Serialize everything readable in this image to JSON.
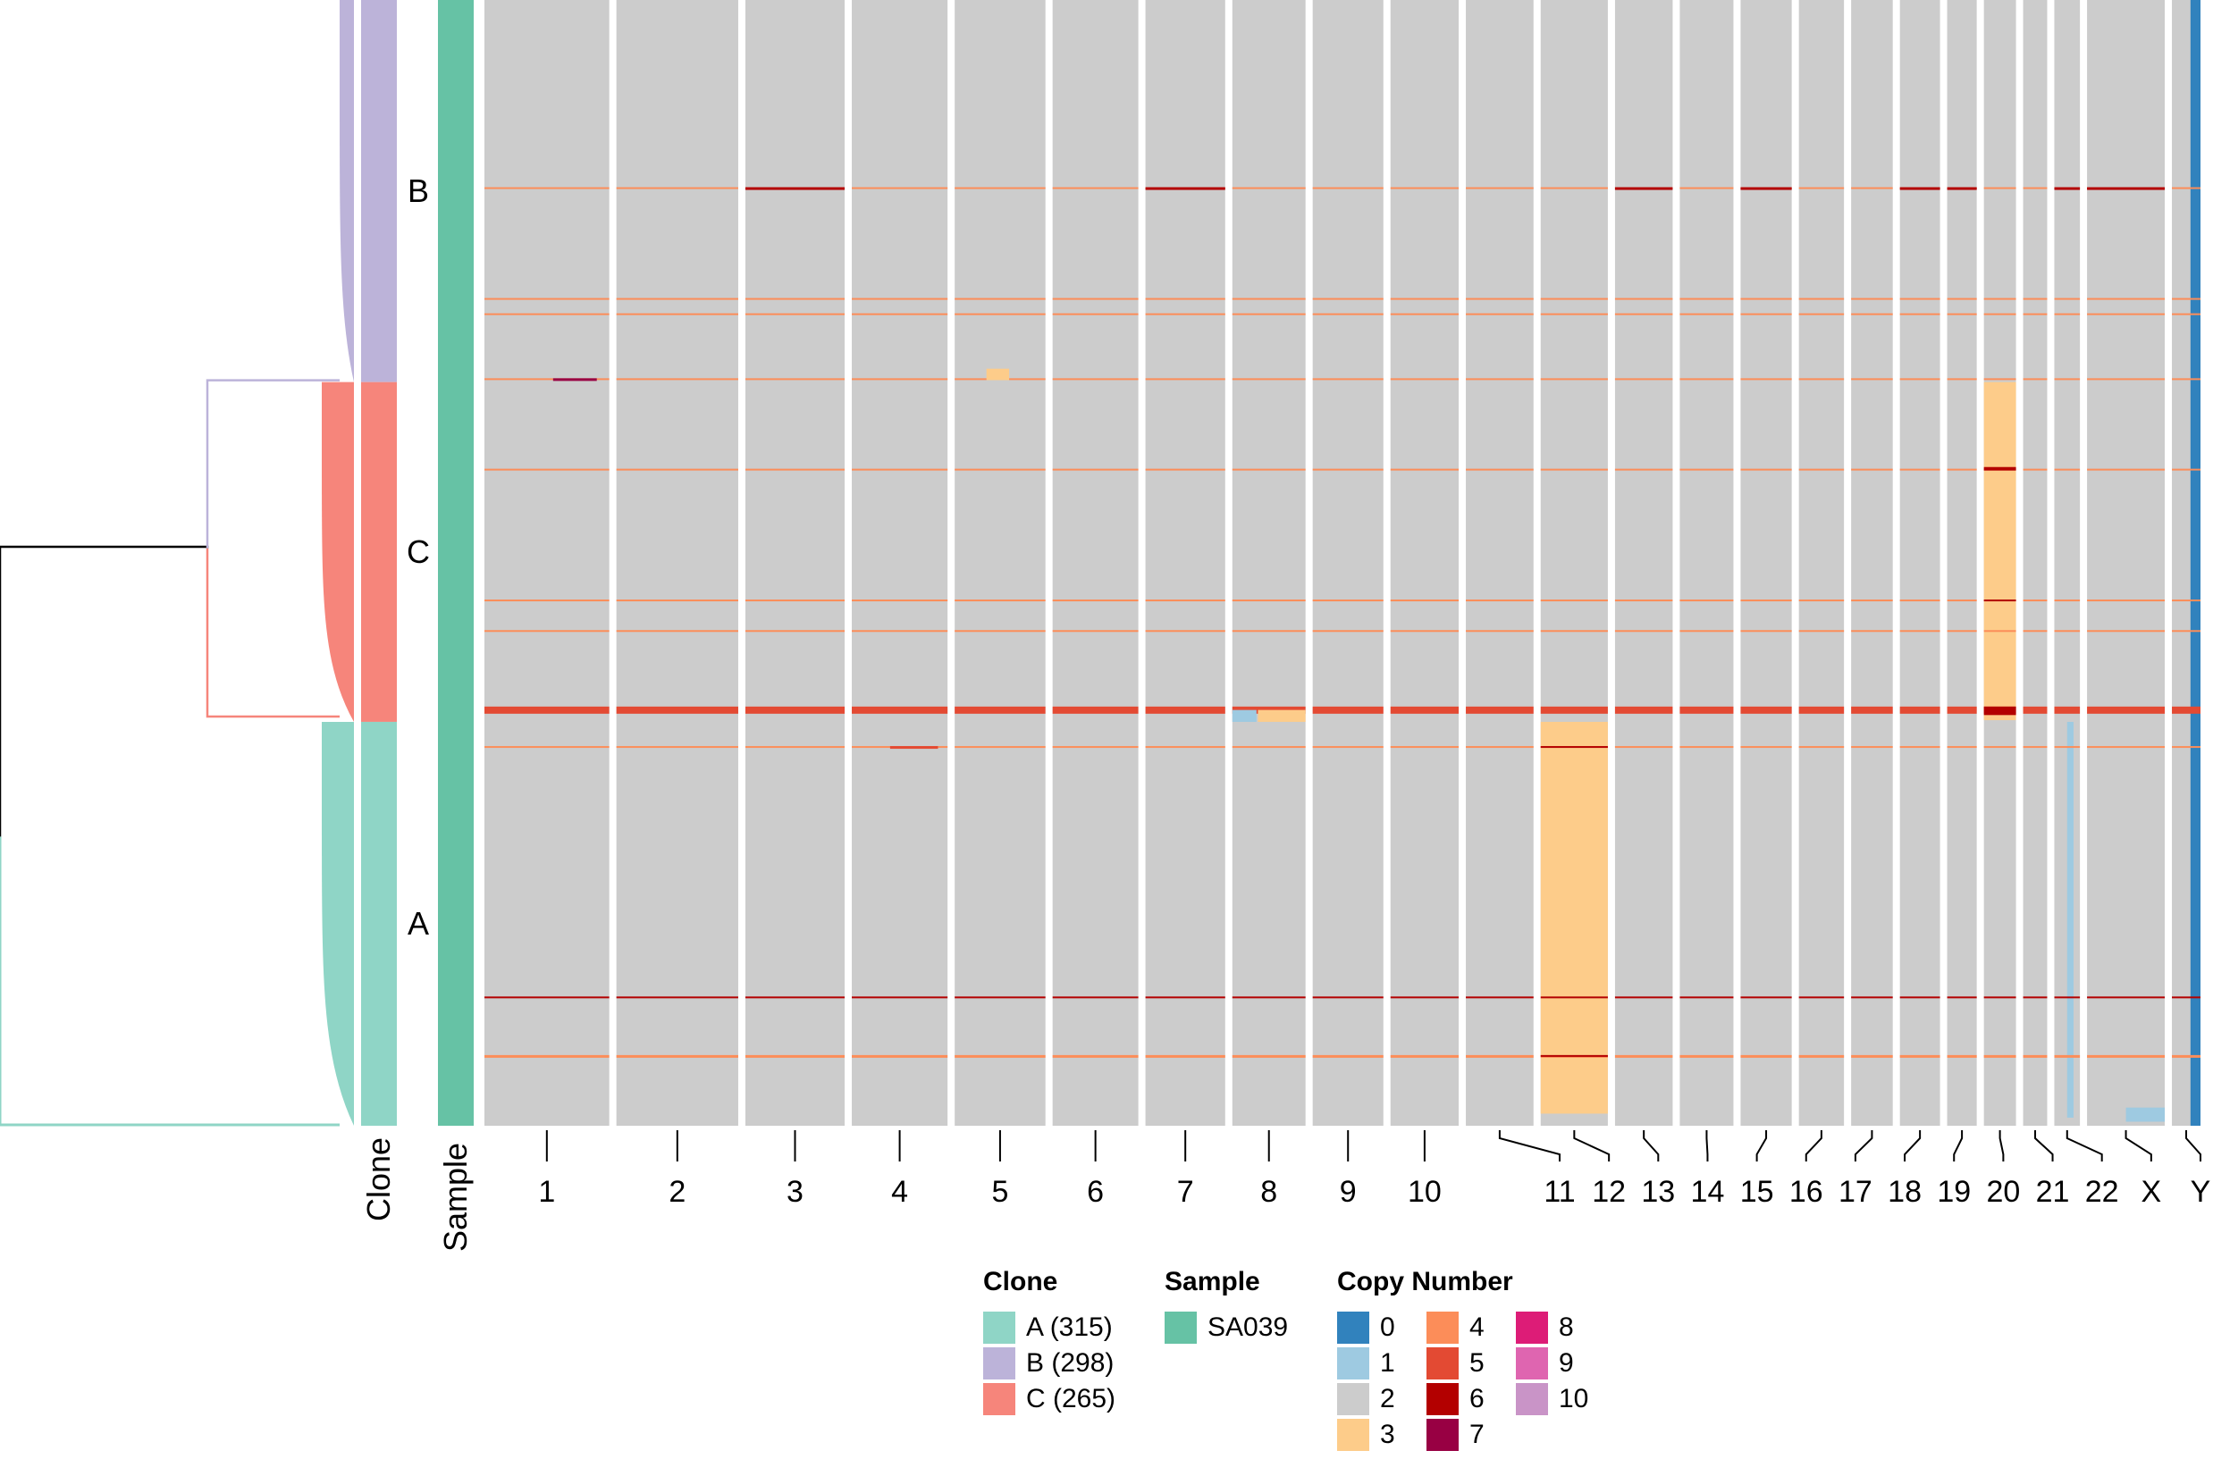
{
  "chart_data": {
    "type": "heatmap",
    "title": "",
    "side_labels": {
      "clone": "Clone",
      "sample": "Sample"
    },
    "clones": [
      {
        "name": "A",
        "count": 315,
        "color": "#8fd5c6"
      },
      {
        "name": "B",
        "count": 298,
        "color": "#bcb3d9"
      },
      {
        "name": "C",
        "count": 265,
        "color": "#f6857b"
      }
    ],
    "clone_order_top_to_bottom": [
      "B",
      "C",
      "A"
    ],
    "sample": {
      "name": "SA039",
      "color": "#66c2a5"
    },
    "chromosomes": [
      "1",
      "2",
      "3",
      "4",
      "5",
      "6",
      "7",
      "8",
      "9",
      "10",
      "11",
      "12",
      "13",
      "14",
      "15",
      "16",
      "17",
      "18",
      "19",
      "20",
      "21",
      "22",
      "X",
      "Y"
    ],
    "chromosome_relative_size": [
      249,
      243,
      198,
      191,
      181,
      171,
      159,
      146,
      141,
      136,
      135,
      134,
      115,
      107,
      102,
      90,
      83,
      80,
      59,
      64,
      48,
      51,
      155,
      57
    ],
    "copy_number_colors": {
      "0": "#3182bd",
      "1": "#9ecae1",
      "2": "#cccccc",
      "3": "#fdcc8a",
      "4": "#fc8d59",
      "5": "#e34a33",
      "6": "#b30000",
      "7": "#980043",
      "8": "#dd1c77",
      "9": "#df65b0",
      "10": "#c994c7"
    },
    "notable_events": [
      {
        "clone": "C",
        "chromosome": "20",
        "copy_number": 3,
        "description": "clone-wide gain"
      },
      {
        "clone": "A",
        "chromosome": "12",
        "copy_number": 3,
        "description": "subclonal gain"
      },
      {
        "clone": "A",
        "chromosome": "22",
        "copy_number": 1,
        "description": "subclonal loss"
      },
      {
        "clone": "all",
        "chromosome": "Y",
        "copy_number": 0,
        "description": "loss"
      }
    ],
    "legend": {
      "clone_title": "Clone",
      "clone_entries": [
        "A (315)",
        "B (298)",
        "C (265)"
      ],
      "sample_title": "Sample",
      "sample_entries": [
        "SA039"
      ],
      "copy_number_title": "Copy Number",
      "copy_number_entries": [
        "0",
        "1",
        "2",
        "3",
        "4",
        "5",
        "6",
        "7",
        "8",
        "9",
        "10"
      ]
    }
  }
}
